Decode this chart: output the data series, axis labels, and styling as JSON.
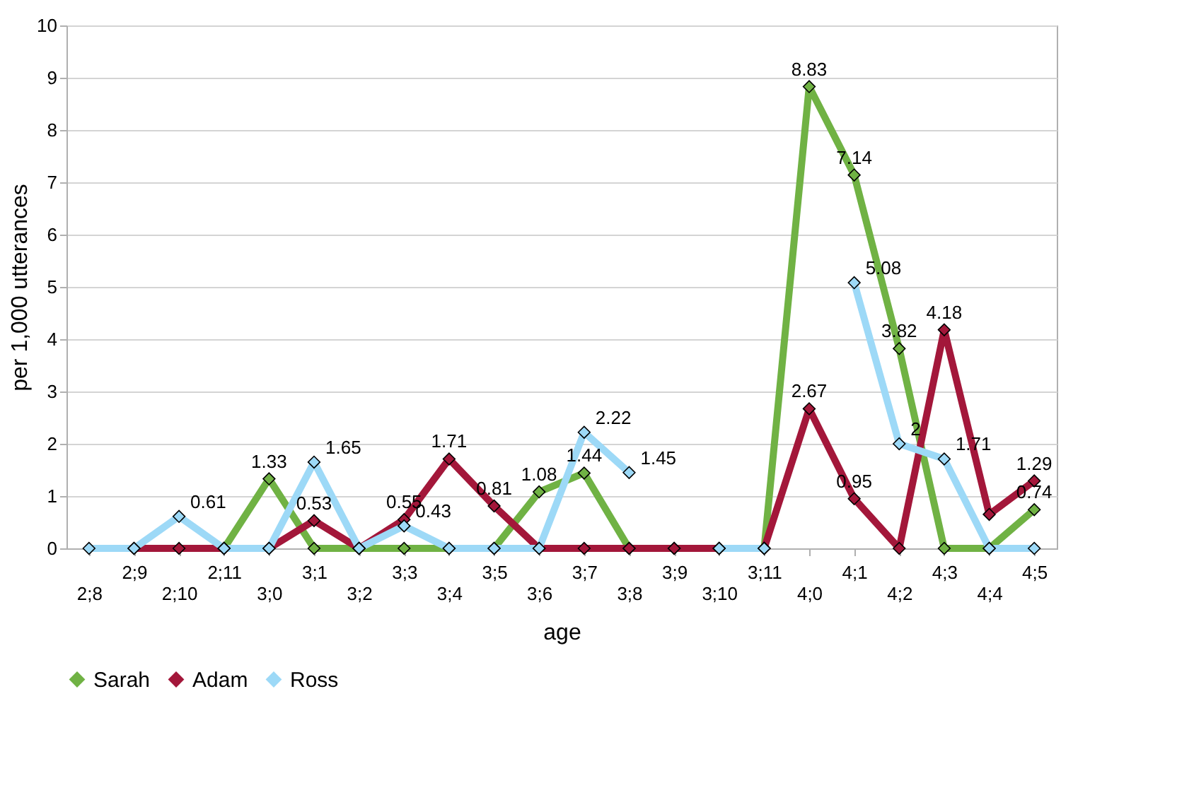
{
  "chart_data": {
    "type": "line",
    "xlabel": "age",
    "ylabel": "per 1,000 utterances",
    "categories": [
      "2;8",
      "2;9",
      "2;10",
      "2;11",
      "3;0",
      "3;1",
      "3;2",
      "3;3",
      "3;4",
      "3;5",
      "3;6",
      "3;7",
      "3;8",
      "3;9",
      "3;10",
      "3;11",
      "4;0",
      "4;1",
      "4;2",
      "4;3",
      "4;4",
      "4;5"
    ],
    "series": [
      {
        "name": "Sarah",
        "color": "#70b244",
        "values": [
          null,
          null,
          null,
          0,
          1.33,
          0,
          0,
          0,
          0,
          0,
          1.08,
          1.44,
          0,
          0,
          0,
          0,
          8.83,
          7.14,
          3.82,
          0,
          0,
          0.74
        ],
        "value_labels": [
          null,
          null,
          null,
          null,
          "1.33",
          null,
          null,
          null,
          null,
          null,
          "1.08",
          "1.44",
          null,
          null,
          null,
          null,
          "8.83",
          "7.14",
          "3.82",
          null,
          null,
          "0.74"
        ]
      },
      {
        "name": "Adam",
        "color": "#a3173a",
        "values": [
          null,
          0,
          0,
          0,
          0,
          0.53,
          0,
          0.55,
          1.71,
          0.81,
          0,
          0,
          0,
          0,
          0,
          0,
          2.67,
          0.95,
          0,
          4.18,
          0.65,
          1.29
        ],
        "value_labels": [
          null,
          null,
          null,
          null,
          null,
          "0.53",
          null,
          "0.55",
          "1.71",
          "0.81",
          null,
          null,
          null,
          null,
          null,
          null,
          "2.67",
          "0.95",
          null,
          "4.18",
          null,
          "1.29"
        ]
      },
      {
        "name": "Ross",
        "color": "#9dd9f7",
        "values": [
          0,
          0,
          0.61,
          0,
          0,
          1.65,
          0,
          0.43,
          0,
          0,
          0,
          2.22,
          1.45,
          null,
          0,
          0,
          null,
          5.08,
          2,
          1.71,
          0,
          0
        ],
        "value_labels": [
          null,
          null,
          "0.61",
          null,
          null,
          "1.65",
          null,
          "0.43",
          null,
          null,
          null,
          "2.22",
          "1.45",
          null,
          null,
          null,
          null,
          "5.08",
          "2",
          "1.71",
          null,
          null
        ]
      }
    ],
    "ylim": [
      0,
      10
    ],
    "yticks": [
      0,
      1,
      2,
      3,
      4,
      5,
      6,
      7,
      8,
      9,
      10
    ],
    "grid": "y",
    "legend": "bottom",
    "marker": "diamond",
    "line_style": "solid"
  }
}
